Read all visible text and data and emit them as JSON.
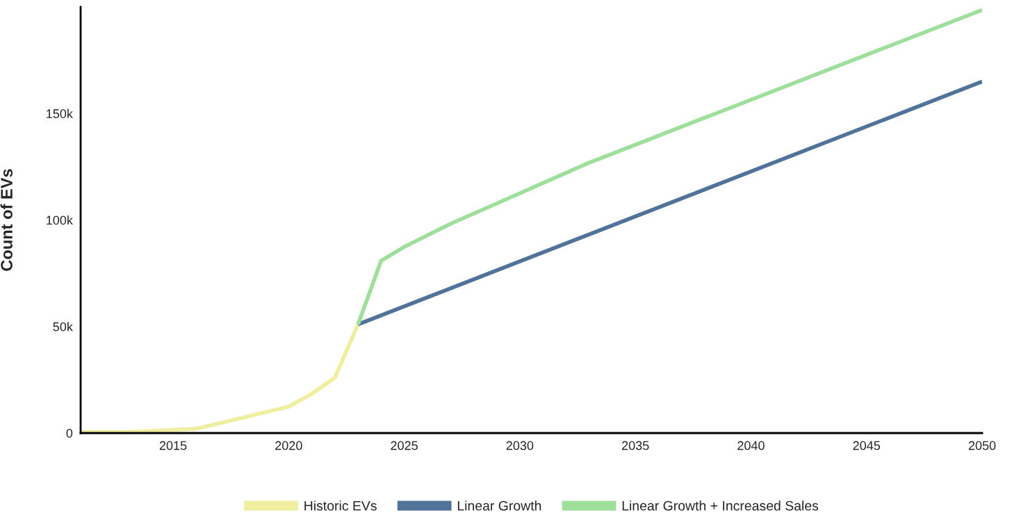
{
  "chart_data": {
    "type": "line",
    "ylabel": "Count of EVs",
    "series": [
      {
        "name": "Historic EVs",
        "color": "#f0ee9f",
        "x": [
          2011,
          2013,
          2016,
          2020,
          2021,
          2022,
          2023
        ],
        "values": [
          500,
          500,
          2000,
          12400,
          18400,
          26000,
          51000
        ]
      },
      {
        "name": "Linear Growth",
        "color": "#4f7399",
        "x": [
          2023,
          2050
        ],
        "values": [
          51000,
          165000
        ]
      },
      {
        "name": "Linear Growth + Increased Sales",
        "color": "#9edf9c",
        "x": [
          2023,
          2024,
          2025,
          2027,
          2033,
          2050
        ],
        "values": [
          51000,
          80900,
          87400,
          98200,
          126900,
          198600
        ]
      }
    ],
    "xlim": [
      2011,
      2050
    ],
    "xticks": [
      2015,
      2020,
      2025,
      2030,
      2035,
      2040,
      2045,
      2050
    ],
    "ylim": [
      0,
      200000
    ],
    "yticks": [
      0,
      {
        "value": 50000,
        "label": "50k"
      },
      {
        "value": 100000,
        "label": "100k"
      },
      {
        "value": 150000,
        "label": "150k"
      }
    ],
    "grid": false,
    "legend": "bottom",
    "line_style": "solid",
    "marker": "none"
  }
}
